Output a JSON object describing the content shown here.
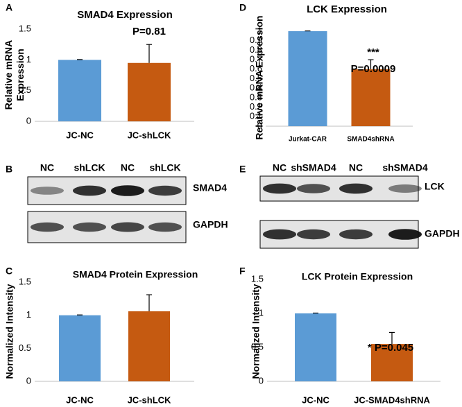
{
  "chart_data": [
    {
      "panel": "A",
      "type": "bar",
      "title": "SMAD4 Expression",
      "ylabel": [
        "Relative mRNA",
        "Expression"
      ],
      "categories": [
        "JC-NC",
        "JC-shLCK"
      ],
      "values": [
        1.0,
        0.95
      ],
      "errors": [
        0.005,
        0.3
      ],
      "colors": [
        "#5b9bd5",
        "#c55a11"
      ],
      "ylim": [
        0,
        1.5
      ],
      "yticks": [
        0,
        0.5,
        1,
        1.5
      ],
      "annotations": [
        "P=0.81"
      ]
    },
    {
      "panel": "D",
      "type": "bar",
      "title": "LCK Expression",
      "ylabel": [
        "Relative mRNA Expression"
      ],
      "categories": [
        "Jurkat-CAR",
        "SMAD4shRNA"
      ],
      "values": [
        1.0,
        0.6
      ],
      "errors": [
        0.003,
        0.1
      ],
      "colors": [
        "#5b9bd5",
        "#c55a11"
      ],
      "ylim": [
        0,
        1
      ],
      "yticks": [
        0,
        0.1,
        0.2,
        0.3,
        0.4,
        0.5,
        0.6,
        0.7,
        0.8,
        0.9,
        1
      ],
      "annotations": [
        "***",
        "P=0.0009"
      ]
    },
    {
      "panel": "C",
      "type": "bar",
      "title": "SMAD4 Protein Expression",
      "ylabel": [
        "Normalized Intensity"
      ],
      "categories": [
        "JC-NC",
        "JC-shLCK"
      ],
      "values": [
        1.0,
        1.06
      ],
      "errors": [
        0.005,
        0.25
      ],
      "colors": [
        "#5b9bd5",
        "#c55a11"
      ],
      "ylim": [
        0,
        1.5
      ],
      "yticks": [
        0,
        0.5,
        1,
        1.5
      ],
      "annotations": []
    },
    {
      "panel": "F",
      "type": "bar",
      "title": "LCK Protein Expression",
      "ylabel": [
        "Normalized Intensity"
      ],
      "categories": [
        "JC-NC",
        "JC-SMAD4shRNA"
      ],
      "values": [
        1.0,
        0.55
      ],
      "errors": [
        0.005,
        0.17
      ],
      "colors": [
        "#5b9bd5",
        "#c55a11"
      ],
      "ylim": [
        0,
        1.5
      ],
      "yticks": [
        0,
        0.5,
        1,
        1.5
      ],
      "annotations": [
        "* P=0.045"
      ]
    }
  ],
  "blots": [
    {
      "panel": "B",
      "lanes": [
        "NC",
        "shLCK",
        "NC",
        "shLCK"
      ],
      "bands": [
        "SMAD4",
        "GAPDH"
      ]
    },
    {
      "panel": "E",
      "lanes": [
        "NC",
        "shSMAD4",
        "NC",
        "shSMAD4"
      ],
      "bands": [
        "LCK",
        "GAPDH"
      ]
    }
  ]
}
